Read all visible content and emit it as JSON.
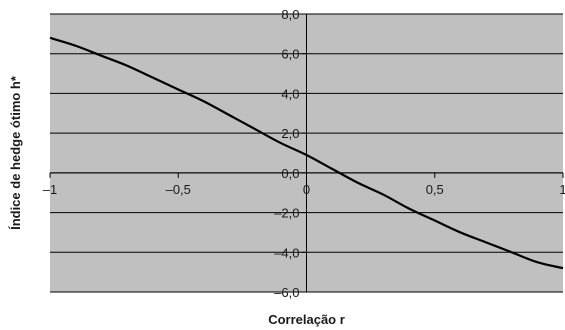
{
  "chart_data": {
    "type": "line",
    "xlabel": "Correlação r",
    "ylabel": "Índice de hedge ótimo h*",
    "xlim": [
      -1,
      1
    ],
    "ylim": [
      -6,
      8
    ],
    "x_ticks": [
      -1,
      -0.5,
      0,
      0.5,
      1
    ],
    "x_tick_labels": [
      "–1",
      "–0,5",
      "0",
      "0,5",
      "1"
    ],
    "y_ticks": [
      8,
      6,
      4,
      2,
      0,
      -2,
      -4,
      -6
    ],
    "y_tick_labels": [
      "8,0",
      "6,0",
      "4,0",
      "2,0",
      "0,0",
      "–2,0",
      "–4,0",
      "–6,0"
    ],
    "grid": true,
    "series": [
      {
        "x": [
          -1.0,
          -0.9,
          -0.8,
          -0.7,
          -0.6,
          -0.5,
          -0.4,
          -0.3,
          -0.2,
          -0.1,
          0.0,
          0.1,
          0.2,
          0.3,
          0.4,
          0.5,
          0.6,
          0.7,
          0.8,
          0.9,
          1.0
        ],
        "values": [
          6.8,
          6.4,
          5.9,
          5.4,
          4.8,
          4.2,
          3.6,
          2.9,
          2.2,
          1.5,
          0.9,
          0.2,
          -0.5,
          -1.1,
          -1.8,
          -2.4,
          -3.0,
          -3.5,
          -4.0,
          -4.5,
          -4.8
        ],
        "color": "#000000"
      }
    ],
    "plot_background": "#c0c0c0",
    "gridline_color": "#000000"
  }
}
